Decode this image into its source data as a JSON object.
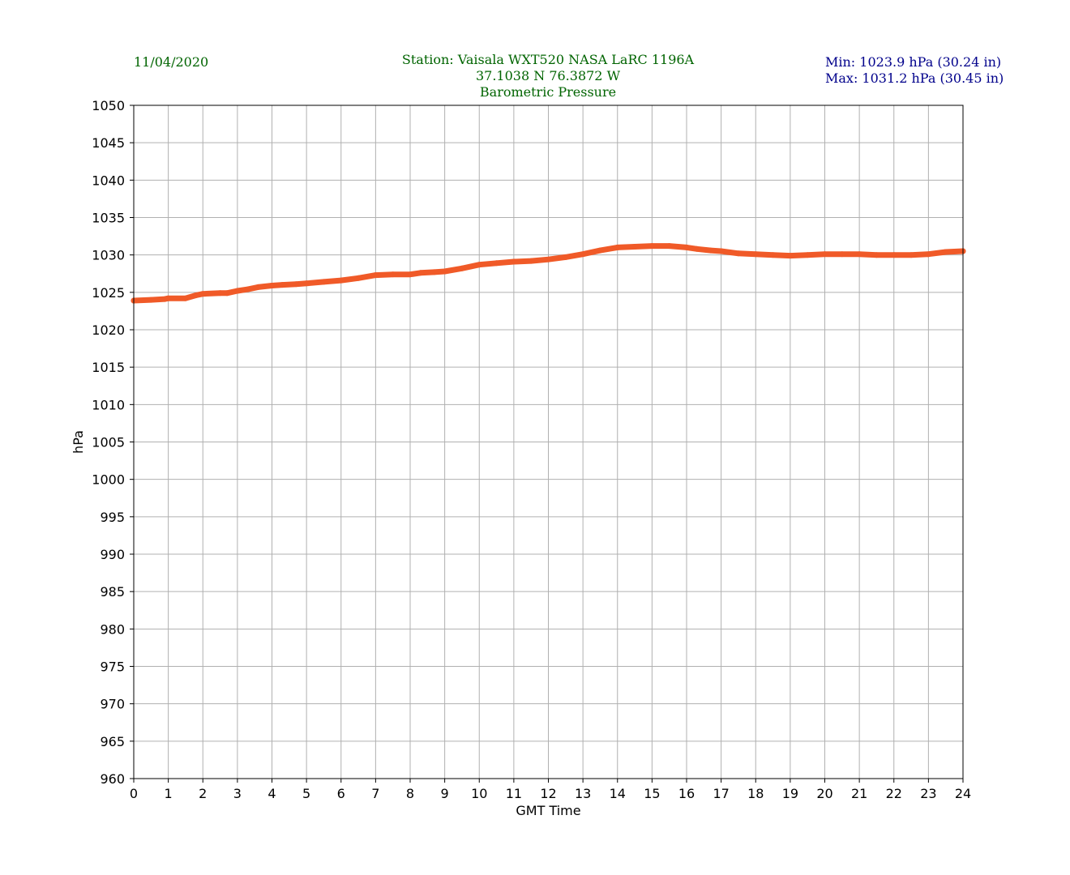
{
  "header": {
    "date": "11/04/2020",
    "station_line": "Station:  Vaisala WXT520  NASA LaRC 1196A",
    "coords_line": "37.1038 N 76.3872 W",
    "title_line": "Barometric Pressure",
    "min_line": "Min: 1023.9 hPa (30.24 in)",
    "max_line": "Max: 1031.2 hPa (30.45 in)"
  },
  "colors": {
    "header_text": "#006400",
    "stats_text": "#00008b",
    "series": "#f05a28",
    "grid": "#b0b0b0"
  },
  "chart_data": {
    "type": "line",
    "title": "Barometric Pressure",
    "xlabel": "GMT Time",
    "ylabel": "hPa",
    "xlim": [
      0,
      24
    ],
    "ylim": [
      960,
      1050
    ],
    "xticks": [
      0,
      1,
      2,
      3,
      4,
      5,
      6,
      7,
      8,
      9,
      10,
      11,
      12,
      13,
      14,
      15,
      16,
      17,
      18,
      19,
      20,
      21,
      22,
      23,
      24
    ],
    "yticks": [
      960,
      965,
      970,
      975,
      980,
      985,
      990,
      995,
      1000,
      1005,
      1010,
      1015,
      1020,
      1025,
      1030,
      1035,
      1040,
      1045,
      1050
    ],
    "grid": true,
    "series": [
      {
        "x": [
          0,
          0.5,
          0.9,
          1.0,
          1.5,
          1.8,
          2.0,
          2.5,
          2.7,
          3.0,
          3.3,
          3.6,
          4.0,
          4.3,
          4.7,
          5.0,
          5.5,
          6.0,
          6.5,
          7.0,
          7.5,
          8.0,
          8.3,
          8.7,
          9.0,
          9.5,
          10.0,
          10.5,
          11.0,
          11.5,
          12.0,
          12.5,
          13.0,
          13.5,
          14.0,
          14.5,
          15.0,
          15.5,
          16.0,
          16.3,
          16.7,
          17.0,
          17.5,
          18.0,
          18.5,
          19.0,
          19.5,
          20.0,
          20.5,
          21.0,
          21.5,
          22.0,
          22.5,
          23.0,
          23.5,
          24.0
        ],
        "y": [
          1023.9,
          1024.0,
          1024.1,
          1024.2,
          1024.2,
          1024.6,
          1024.8,
          1024.9,
          1024.9,
          1025.2,
          1025.4,
          1025.7,
          1025.9,
          1026.0,
          1026.1,
          1026.2,
          1026.4,
          1026.6,
          1026.9,
          1027.3,
          1027.4,
          1027.4,
          1027.6,
          1027.7,
          1027.8,
          1028.2,
          1028.7,
          1028.9,
          1029.1,
          1029.2,
          1029.4,
          1029.7,
          1030.1,
          1030.6,
          1031.0,
          1031.1,
          1031.2,
          1031.2,
          1031.0,
          1030.8,
          1030.6,
          1030.5,
          1030.2,
          1030.1,
          1030.0,
          1029.9,
          1030.0,
          1030.1,
          1030.1,
          1030.1,
          1030.0,
          1030.0,
          1030.0,
          1030.1,
          1030.4,
          1030.5
        ]
      }
    ]
  }
}
